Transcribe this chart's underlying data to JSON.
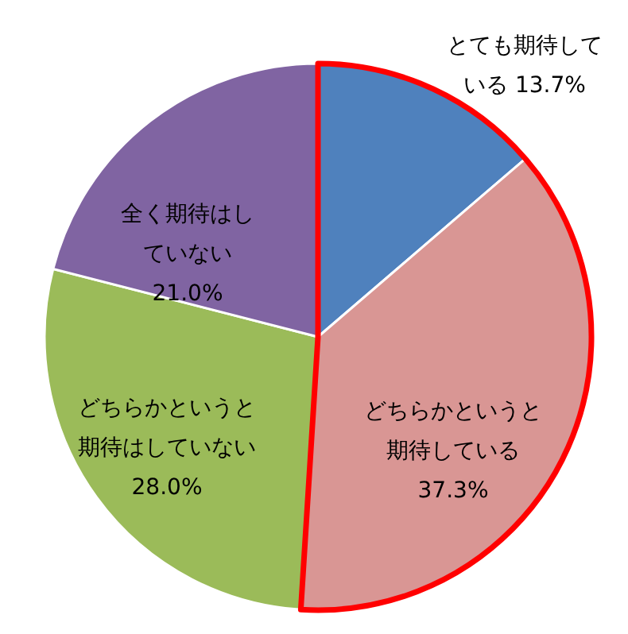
{
  "chart_data": {
    "type": "pie",
    "categories": [
      "とても期待している",
      "どちらかというと期待している",
      "どちらかというと期待はしていない",
      "全く期待はしていない"
    ],
    "values": [
      13.7,
      37.3,
      28.0,
      21.0
    ],
    "value_labels": [
      "13.7%",
      "37.3%",
      "28.0%",
      "21.0%"
    ],
    "colors": [
      "#4f81bd",
      "#d99694",
      "#9bbb59",
      "#8064a2"
    ]
  }
}
